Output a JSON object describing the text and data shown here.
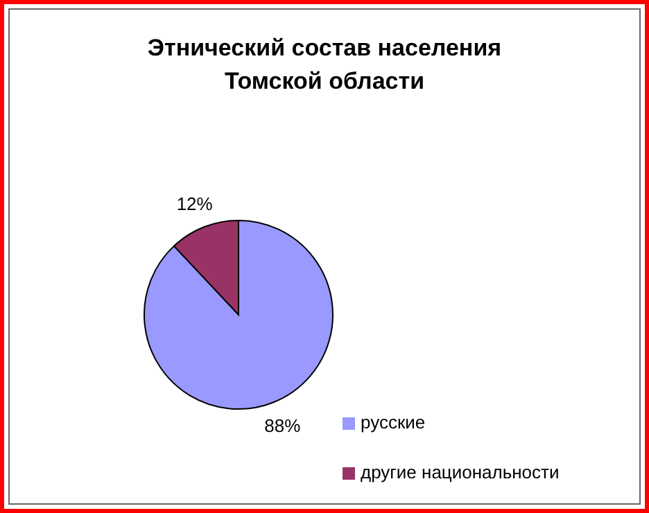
{
  "chart_data": {
    "type": "pie",
    "title": "Этнический состав населения Томской области",
    "categories": [
      "русские",
      "другие национальности"
    ],
    "values": [
      88,
      12
    ],
    "colors": [
      "#9999ff",
      "#993366"
    ],
    "value_labels": [
      "88%",
      "12%"
    ],
    "legend": "right"
  }
}
